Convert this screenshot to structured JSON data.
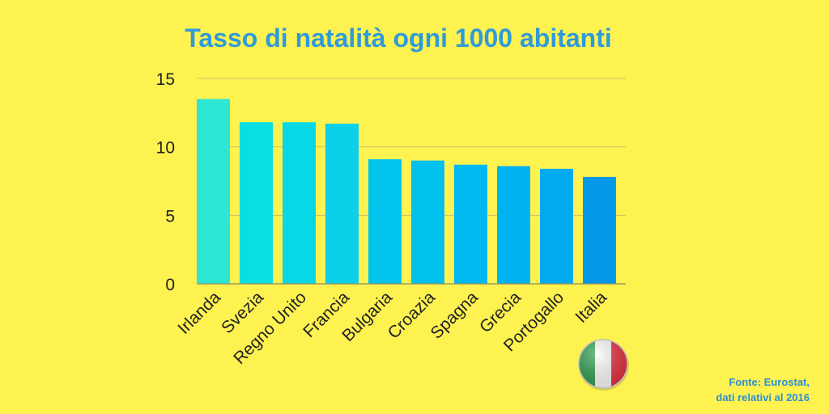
{
  "chart_data": {
    "type": "bar",
    "title": "Tasso di natalità ogni 1000 abitanti",
    "xlabel": "",
    "ylabel": "",
    "ylim": [
      0,
      15
    ],
    "yticks": [
      0,
      5,
      10,
      15
    ],
    "grid": true,
    "categories": [
      "Irlanda",
      "Svezia",
      "Regno Unito",
      "Francia",
      "Bulgaria",
      "Croazia",
      "Spagna",
      "Grecia",
      "Portogallo",
      "Italia"
    ],
    "values": [
      13.5,
      11.8,
      11.8,
      11.7,
      9.1,
      9.0,
      8.7,
      8.6,
      8.4,
      7.8
    ],
    "bar_colors": [
      "#2ee6d4",
      "#07dfe2",
      "#08d8e6",
      "#0ad0ea",
      "#02c3ec",
      "#00c0ee",
      "#00b9f0",
      "#00b3f0",
      "#03aaee",
      "#0597ea"
    ],
    "source_lines": [
      "Fonte: Eurostat,",
      "dati relativi al 2016"
    ]
  },
  "flag": {
    "icon": "italy-flag-icon",
    "colors": [
      "#2c9b4b",
      "#ffffff",
      "#e8313f"
    ]
  }
}
